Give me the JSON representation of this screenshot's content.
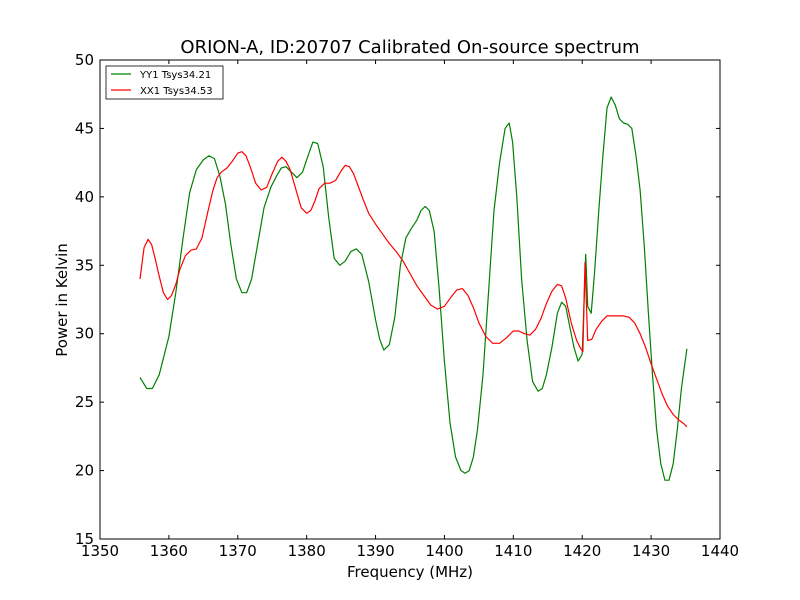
{
  "chart_data": {
    "type": "line",
    "title": "ORION-A, ID:20707 Calibrated On-source spectrum",
    "xlabel": "Frequency (MHz)",
    "ylabel": "Power in Kelvin",
    "xlim": [
      1350,
      1440
    ],
    "ylim": [
      15,
      50
    ],
    "xticks": [
      "1350",
      "1360",
      "1370",
      "1380",
      "1390",
      "1400",
      "1410",
      "1420",
      "1430",
      "1440"
    ],
    "yticks": [
      "15",
      "20",
      "25",
      "30",
      "35",
      "40",
      "45",
      "50"
    ],
    "grid": false,
    "legend_position": "top-left",
    "series": [
      {
        "name": "YY1 Tsys34.21",
        "color": "#008000",
        "x": [
          1355.8,
          1356.8,
          1357.6,
          1358.6,
          1360.0,
          1361.0,
          1362.0,
          1363.0,
          1364.0,
          1365.0,
          1365.8,
          1366.6,
          1367.4,
          1368.2,
          1369.0,
          1369.8,
          1370.6,
          1371.3,
          1372.0,
          1372.8,
          1373.8,
          1374.8,
          1375.6,
          1376.3,
          1377.0,
          1377.8,
          1378.6,
          1379.4,
          1380.2,
          1380.9,
          1381.6,
          1382.4,
          1383.2,
          1384.0,
          1384.8,
          1385.6,
          1386.4,
          1387.2,
          1388.0,
          1389.0,
          1390.0,
          1390.6,
          1391.2,
          1392.0,
          1392.8,
          1393.6,
          1394.4,
          1395.2,
          1396.0,
          1396.6,
          1397.2,
          1397.8,
          1398.5,
          1399.2,
          1400.0,
          1400.8,
          1401.6,
          1402.4,
          1403.0,
          1403.6,
          1404.2,
          1404.8,
          1405.6,
          1406.4,
          1407.2,
          1408.0,
          1408.8,
          1409.4,
          1409.9,
          1410.5,
          1411.2,
          1412.0,
          1412.8,
          1413.6,
          1414.2,
          1414.8,
          1415.6,
          1416.4,
          1417.0,
          1417.6,
          1418.2,
          1418.8,
          1419.4,
          1420.0,
          1420.5,
          1420.8,
          1421.3,
          1421.8,
          1422.4,
          1423.0,
          1423.6,
          1424.2,
          1424.8,
          1425.4,
          1426.0,
          1426.6,
          1427.2,
          1427.8,
          1428.4,
          1429.0,
          1429.6,
          1430.2,
          1430.8,
          1431.4,
          1432.0,
          1432.6,
          1433.2,
          1433.8,
          1434.4,
          1435.2
        ],
        "y": [
          26.8,
          26.0,
          26.0,
          27.0,
          29.8,
          33.0,
          36.8,
          40.3,
          42.0,
          42.7,
          43.0,
          42.8,
          41.5,
          39.5,
          36.5,
          34.0,
          33.0,
          33.0,
          34.0,
          36.3,
          39.2,
          40.7,
          41.5,
          42.1,
          42.2,
          41.8,
          41.4,
          41.8,
          43.0,
          44.0,
          43.9,
          42.2,
          38.5,
          35.5,
          35.0,
          35.3,
          36.0,
          36.2,
          35.8,
          33.8,
          31.0,
          29.6,
          28.8,
          29.2,
          31.2,
          35.0,
          37.0,
          37.7,
          38.3,
          39.0,
          39.3,
          39.0,
          37.5,
          33.5,
          28.0,
          23.5,
          21.0,
          20.0,
          19.8,
          20.0,
          21.0,
          23.0,
          27.0,
          33.0,
          39.0,
          42.5,
          45.0,
          45.4,
          44.0,
          40.0,
          34.0,
          29.5,
          26.5,
          25.8,
          26.0,
          27.0,
          29.0,
          31.5,
          32.3,
          32.0,
          30.5,
          29.0,
          28.0,
          28.5,
          35.8,
          32.0,
          31.5,
          34.5,
          39.0,
          43.0,
          46.5,
          47.3,
          46.7,
          45.7,
          45.4,
          45.3,
          45.0,
          43.0,
          40.5,
          36.5,
          31.5,
          27.0,
          23.0,
          20.5,
          19.3,
          19.3,
          20.5,
          23.0,
          26.0,
          28.9
        ]
      },
      {
        "name": "XX1 Tsys34.53",
        "color": "#ff0000",
        "x": [
          1355.8,
          1356.4,
          1357.0,
          1357.5,
          1358.0,
          1358.6,
          1359.2,
          1359.8,
          1360.4,
          1361.0,
          1361.6,
          1362.4,
          1363.2,
          1364.0,
          1364.8,
          1365.6,
          1366.4,
          1367.0,
          1367.6,
          1368.4,
          1369.2,
          1370.0,
          1370.6,
          1371.2,
          1371.8,
          1372.6,
          1373.4,
          1374.2,
          1375.0,
          1375.8,
          1376.4,
          1377.0,
          1377.6,
          1378.4,
          1379.2,
          1380.0,
          1380.6,
          1381.2,
          1381.8,
          1382.6,
          1383.4,
          1384.2,
          1385.0,
          1385.6,
          1386.2,
          1386.8,
          1387.4,
          1388.2,
          1389.0,
          1390.0,
          1391.0,
          1392.0,
          1393.0,
          1394.0,
          1395.0,
          1396.0,
          1397.0,
          1398.0,
          1399.0,
          1400.0,
          1401.0,
          1401.8,
          1402.6,
          1403.4,
          1404.2,
          1405.0,
          1406.0,
          1407.0,
          1408.0,
          1409.0,
          1410.0,
          1410.8,
          1411.6,
          1412.4,
          1413.2,
          1414.0,
          1414.8,
          1415.6,
          1416.4,
          1417.0,
          1417.6,
          1418.4,
          1419.2,
          1419.8,
          1420.1,
          1420.4,
          1420.8,
          1421.4,
          1422.0,
          1422.8,
          1423.6,
          1424.4,
          1425.2,
          1426.0,
          1426.8,
          1427.6,
          1428.4,
          1429.2,
          1430.0,
          1430.8,
          1431.6,
          1432.4,
          1433.2,
          1434.0,
          1434.8,
          1435.2
        ],
        "y": [
          34.0,
          36.3,
          36.9,
          36.5,
          35.5,
          34.2,
          33.0,
          32.5,
          32.8,
          33.6,
          34.7,
          35.7,
          36.1,
          36.2,
          37.0,
          38.8,
          40.5,
          41.4,
          41.8,
          42.1,
          42.6,
          43.2,
          43.3,
          43.0,
          42.2,
          41.0,
          40.5,
          40.7,
          41.7,
          42.6,
          42.9,
          42.6,
          42.0,
          40.6,
          39.2,
          38.8,
          39.0,
          39.7,
          40.6,
          41.0,
          41.0,
          41.2,
          41.9,
          42.3,
          42.2,
          41.7,
          40.9,
          39.8,
          38.8,
          38.0,
          37.3,
          36.6,
          36.0,
          35.3,
          34.4,
          33.5,
          32.8,
          32.1,
          31.8,
          32.0,
          32.7,
          33.2,
          33.3,
          32.8,
          31.9,
          30.8,
          29.8,
          29.3,
          29.3,
          29.7,
          30.2,
          30.2,
          30.0,
          29.9,
          30.3,
          31.1,
          32.2,
          33.1,
          33.6,
          33.5,
          32.6,
          30.8,
          29.5,
          28.9,
          28.7,
          35.2,
          29.5,
          29.6,
          30.3,
          30.9,
          31.3,
          31.3,
          31.3,
          31.3,
          31.2,
          30.8,
          30.0,
          29.0,
          27.8,
          26.7,
          25.6,
          24.7,
          24.1,
          23.7,
          23.4,
          23.2
        ]
      }
    ]
  }
}
